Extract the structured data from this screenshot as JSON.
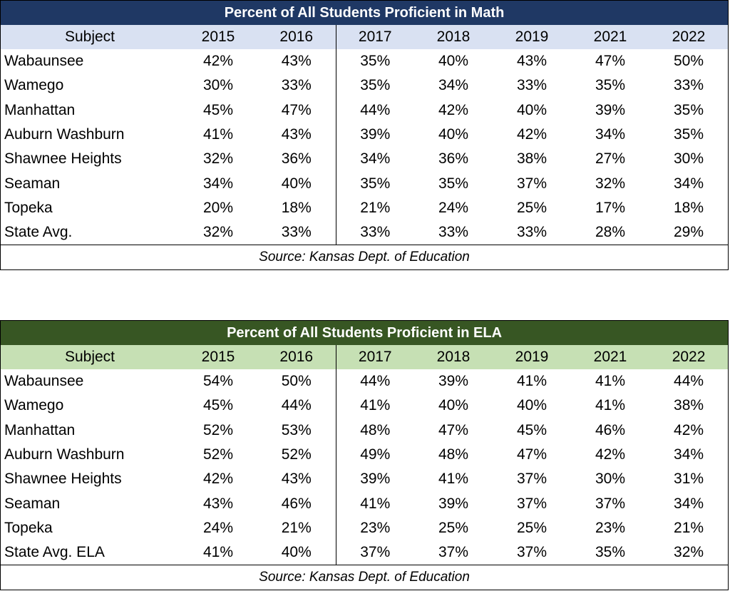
{
  "years": [
    "2015",
    "2016",
    "2017",
    "2018",
    "2019",
    "2021",
    "2022"
  ],
  "math": {
    "title": "Percent of All Students Proficient in Math",
    "subject_header": "Subject",
    "rows": [
      {
        "name": "Wabaunsee",
        "values": [
          "42%",
          "43%",
          "35%",
          "40%",
          "43%",
          "47%",
          "50%"
        ]
      },
      {
        "name": "Wamego",
        "values": [
          "30%",
          "33%",
          "35%",
          "34%",
          "33%",
          "35%",
          "33%"
        ]
      },
      {
        "name": "Manhattan",
        "values": [
          "45%",
          "47%",
          "44%",
          "42%",
          "40%",
          "39%",
          "35%"
        ]
      },
      {
        "name": "Auburn Washburn",
        "values": [
          "41%",
          "43%",
          "39%",
          "40%",
          "42%",
          "34%",
          "35%"
        ]
      },
      {
        "name": "Shawnee Heights",
        "values": [
          "32%",
          "36%",
          "34%",
          "36%",
          "38%",
          "27%",
          "30%"
        ]
      },
      {
        "name": "Seaman",
        "values": [
          "34%",
          "40%",
          "35%",
          "35%",
          "37%",
          "32%",
          "34%"
        ]
      },
      {
        "name": "Topeka",
        "values": [
          "20%",
          "18%",
          "21%",
          "24%",
          "25%",
          "17%",
          "18%"
        ]
      },
      {
        "name": "State Avg.",
        "values": [
          "32%",
          "33%",
          "33%",
          "33%",
          "33%",
          "28%",
          "29%"
        ]
      }
    ],
    "source": "Source: Kansas Dept. of Education"
  },
  "ela": {
    "title": "Percent of All Students Proficient in ELA",
    "subject_header": "Subject",
    "rows": [
      {
        "name": "Wabaunsee",
        "values": [
          "54%",
          "50%",
          "44%",
          "39%",
          "41%",
          "41%",
          "44%"
        ]
      },
      {
        "name": "Wamego",
        "values": [
          "45%",
          "44%",
          "41%",
          "40%",
          "40%",
          "41%",
          "38%"
        ]
      },
      {
        "name": "Manhattan",
        "values": [
          "52%",
          "53%",
          "48%",
          "47%",
          "45%",
          "46%",
          "42%"
        ]
      },
      {
        "name": "Auburn Washburn",
        "values": [
          "52%",
          "52%",
          "49%",
          "48%",
          "47%",
          "42%",
          "34%"
        ]
      },
      {
        "name": "Shawnee Heights",
        "values": [
          "42%",
          "43%",
          "39%",
          "41%",
          "37%",
          "30%",
          "31%"
        ]
      },
      {
        "name": "Seaman",
        "values": [
          "43%",
          "46%",
          "41%",
          "39%",
          "37%",
          "37%",
          "34%"
        ]
      },
      {
        "name": "Topeka",
        "values": [
          "24%",
          "21%",
          "23%",
          "25%",
          "25%",
          "23%",
          "21%"
        ]
      },
      {
        "name": "State Avg. ELA",
        "values": [
          "41%",
          "40%",
          "37%",
          "37%",
          "37%",
          "35%",
          "32%"
        ]
      }
    ],
    "source": "Source: Kansas Dept. of Education"
  }
}
